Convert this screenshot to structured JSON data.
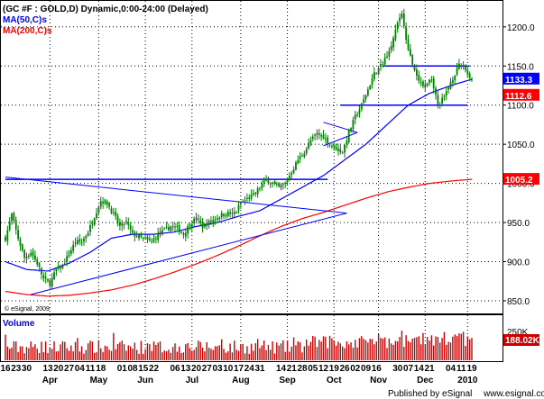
{
  "header": {
    "title": "(GC #F : GOLD,D) Dynamic,0:00-24:00 (Delayed)",
    "ma50_label": "MA(50,C)s",
    "ma200_label": "MA(200,C)s",
    "copyright": "© eSignal, 2009",
    "volume_label": "Volume",
    "footer_published": "Published by eSignal",
    "footer_url": "www.esignal.com"
  },
  "colors": {
    "candle": "#008000",
    "ma50": "#0000ff",
    "ma200": "#ff0000",
    "trendline": "#0000ff",
    "volume": "#cc0000",
    "grid": "#000000"
  },
  "chart_data": {
    "type": "candlestick",
    "title": "(GC #F : GOLD,D) Dynamic,0:00-24:00 (Delayed)",
    "y_ticks": [
      850,
      900,
      950,
      1000,
      1050,
      1100,
      1150,
      1200
    ],
    "ylim": [
      835,
      1232
    ],
    "x_ticks": [
      {
        "label": "16",
        "x": 0
      },
      {
        "label": "23",
        "x": 5
      },
      {
        "label": "30",
        "x": 10
      },
      {
        "label": "13",
        "x": 20
      },
      {
        "label": "20",
        "x": 25
      },
      {
        "label": "27",
        "x": 30
      },
      {
        "label": "04",
        "x": 35
      },
      {
        "label": "11",
        "x": 40
      },
      {
        "label": "18",
        "x": 45
      },
      {
        "label": "01",
        "x": 55
      },
      {
        "label": "08",
        "x": 60
      },
      {
        "label": "15",
        "x": 65
      },
      {
        "label": "22",
        "x": 70
      },
      {
        "label": "06",
        "x": 80
      },
      {
        "label": "13",
        "x": 85
      },
      {
        "label": "20",
        "x": 90
      },
      {
        "label": "27",
        "x": 95
      },
      {
        "label": "03",
        "x": 100
      },
      {
        "label": "10",
        "x": 105
      },
      {
        "label": "17",
        "x": 110
      },
      {
        "label": "24",
        "x": 115
      },
      {
        "label": "31",
        "x": 120
      },
      {
        "label": "14",
        "x": 130
      },
      {
        "label": "21",
        "x": 135
      },
      {
        "label": "28",
        "x": 140
      },
      {
        "label": "05",
        "x": 145
      },
      {
        "label": "12",
        "x": 150
      },
      {
        "label": "19",
        "x": 155
      },
      {
        "label": "26",
        "x": 160
      },
      {
        "label": "02",
        "x": 165
      },
      {
        "label": "09",
        "x": 170
      },
      {
        "label": "16",
        "x": 175
      },
      {
        "label": "30",
        "x": 185
      },
      {
        "label": "07",
        "x": 190
      },
      {
        "label": "14",
        "x": 195
      },
      {
        "label": "21",
        "x": 200
      },
      {
        "label": "04",
        "x": 210
      },
      {
        "label": "11",
        "x": 215
      },
      {
        "label": "19",
        "x": 220
      }
    ],
    "months": [
      {
        "label": "Apr",
        "x": 21
      },
      {
        "label": "May",
        "x": 44
      },
      {
        "label": "Jun",
        "x": 66
      },
      {
        "label": "Jul",
        "x": 88
      },
      {
        "label": "Aug",
        "x": 111
      },
      {
        "label": "Sep",
        "x": 133
      },
      {
        "label": "Oct",
        "x": 155
      },
      {
        "label": "Nov",
        "x": 176
      },
      {
        "label": "Dec",
        "x": 198
      },
      {
        "label": "2010",
        "x": 218
      }
    ],
    "price_key": [
      [
        0,
        930
      ],
      [
        3,
        960
      ],
      [
        6,
        930
      ],
      [
        9,
        905
      ],
      [
        12,
        912
      ],
      [
        15,
        898
      ],
      [
        18,
        878
      ],
      [
        21,
        872
      ],
      [
        24,
        890
      ],
      [
        27,
        895
      ],
      [
        30,
        910
      ],
      [
        33,
        925
      ],
      [
        36,
        925
      ],
      [
        39,
        938
      ],
      [
        42,
        958
      ],
      [
        45,
        978
      ],
      [
        48,
        975
      ],
      [
        51,
        960
      ],
      [
        54,
        945
      ],
      [
        57,
        950
      ],
      [
        60,
        935
      ],
      [
        63,
        932
      ],
      [
        66,
        928
      ],
      [
        69,
        925
      ],
      [
        72,
        935
      ],
      [
        75,
        940
      ],
      [
        78,
        945
      ],
      [
        81,
        943
      ],
      [
        84,
        935
      ],
      [
        87,
        948
      ],
      [
        90,
        955
      ],
      [
        93,
        945
      ],
      [
        96,
        950
      ],
      [
        99,
        955
      ],
      [
        102,
        960
      ],
      [
        105,
        962
      ],
      [
        108,
        960
      ],
      [
        111,
        975
      ],
      [
        114,
        980
      ],
      [
        117,
        985
      ],
      [
        120,
        995
      ],
      [
        123,
        1005
      ],
      [
        126,
        1000
      ],
      [
        129,
        995
      ],
      [
        132,
        1000
      ],
      [
        135,
        1015
      ],
      [
        138,
        1030
      ],
      [
        141,
        1040
      ],
      [
        144,
        1055
      ],
      [
        147,
        1063
      ],
      [
        150,
        1060
      ],
      [
        153,
        1050
      ],
      [
        156,
        1045
      ],
      [
        159,
        1040
      ],
      [
        162,
        1065
      ],
      [
        165,
        1085
      ],
      [
        168,
        1100
      ],
      [
        171,
        1120
      ],
      [
        174,
        1140
      ],
      [
        177,
        1150
      ],
      [
        180,
        1165
      ],
      [
        183,
        1185
      ],
      [
        186,
        1212
      ],
      [
        187,
        1218
      ],
      [
        189,
        1185
      ],
      [
        192,
        1150
      ],
      [
        195,
        1130
      ],
      [
        198,
        1125
      ],
      [
        201,
        1135
      ],
      [
        204,
        1100
      ],
      [
        207,
        1110
      ],
      [
        210,
        1130
      ],
      [
        212,
        1140
      ],
      [
        214,
        1150
      ],
      [
        216,
        1150
      ],
      [
        218,
        1140
      ],
      [
        220,
        1133
      ]
    ],
    "ma50_key": [
      [
        0,
        900
      ],
      [
        10,
        890
      ],
      [
        20,
        888
      ],
      [
        30,
        898
      ],
      [
        40,
        912
      ],
      [
        50,
        930
      ],
      [
        60,
        935
      ],
      [
        70,
        935
      ],
      [
        80,
        938
      ],
      [
        90,
        945
      ],
      [
        100,
        950
      ],
      [
        110,
        958
      ],
      [
        120,
        965
      ],
      [
        130,
        980
      ],
      [
        140,
        995
      ],
      [
        150,
        1010
      ],
      [
        160,
        1030
      ],
      [
        170,
        1050
      ],
      [
        180,
        1075
      ],
      [
        190,
        1100
      ],
      [
        200,
        1115
      ],
      [
        210,
        1125
      ],
      [
        220,
        1133
      ]
    ],
    "ma200_key": [
      [
        0,
        862
      ],
      [
        10,
        858
      ],
      [
        20,
        856
      ],
      [
        30,
        857
      ],
      [
        40,
        860
      ],
      [
        50,
        864
      ],
      [
        60,
        870
      ],
      [
        70,
        878
      ],
      [
        80,
        887
      ],
      [
        90,
        897
      ],
      [
        100,
        908
      ],
      [
        110,
        920
      ],
      [
        120,
        933
      ],
      [
        130,
        945
      ],
      [
        140,
        955
      ],
      [
        150,
        963
      ],
      [
        160,
        972
      ],
      [
        170,
        981
      ],
      [
        180,
        989
      ],
      [
        190,
        995
      ],
      [
        200,
        1000
      ],
      [
        210,
        1003
      ],
      [
        220,
        1005.2
      ]
    ],
    "horizontal_lines": [
      {
        "value": 1005.2,
        "x_start": 0,
        "x_end": 152
      },
      {
        "value": 1150,
        "x_start": 178,
        "x_end": 219
      },
      {
        "value": 1100,
        "x_start": 158,
        "x_end": 218
      }
    ],
    "trendlines": [
      {
        "from": [
          0,
          1008
        ],
        "to": [
          161,
          962
        ]
      },
      {
        "from": [
          12,
          858
        ],
        "to": [
          161,
          962
        ]
      },
      {
        "from": [
          150,
          1078
        ],
        "to": [
          166,
          1065
        ]
      },
      {
        "from": [
          150,
          1048
        ],
        "to": [
          166,
          1065
        ]
      }
    ],
    "price_labels": [
      {
        "label": "1133.3",
        "value": 1133.3,
        "bg": "#0000ff"
      },
      {
        "label": "1112.6",
        "value": 1112.6,
        "bg": "#ff0000"
      },
      {
        "label": "1005.2",
        "value": 1005.2,
        "bg": "#ff0000"
      }
    ],
    "volume_label": "188.02K",
    "volume_axis_label": "250K",
    "volume_max": 280
  }
}
